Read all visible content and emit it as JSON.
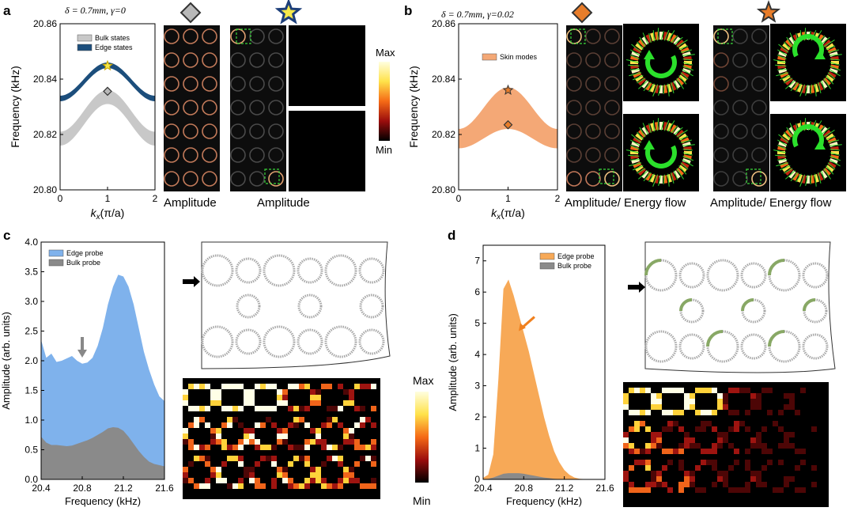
{
  "panel_labels": {
    "a": "a",
    "b": "b",
    "c": "c",
    "d": "d"
  },
  "panel_a": {
    "params": "δ = 0.7mm, γ=0",
    "caption_bulk": "Amplitude",
    "caption_edge": "Amplitude",
    "colorbar_max": "Max",
    "colorbar_min": "Min",
    "marker_diamond_color": "#b8b8b8",
    "marker_star_color": "#f5e84a",
    "marker_star_edge": "#1d3f7a"
  },
  "panel_b": {
    "params": "δ = 0.7mm, γ=0.02",
    "caption_bulk": "Amplitude/ Energy flow",
    "caption_edge": "Amplitude/ Energy flow",
    "marker_diamond_color": "#e87d2a",
    "marker_star_color": "#e87d2a"
  },
  "panel_c": {
    "colorbar_max": "Max",
    "colorbar_min": "Min"
  },
  "chart_data": [
    {
      "id": "a",
      "type": "area",
      "title": "δ = 0.7mm, γ=0",
      "xlabel": "k_x(π/a)",
      "ylabel": "Frequency (kHz)",
      "xlim": [
        0,
        2
      ],
      "ylim": [
        20.8,
        20.86
      ],
      "xticks": [
        "0",
        "1",
        "2"
      ],
      "yticks": [
        "20.80",
        "20.82",
        "20.84",
        "20.86"
      ],
      "legend": [
        "Bulk states",
        "Edge states"
      ],
      "series": [
        {
          "name": "Bulk states",
          "color": "#c8c8c8",
          "x": [
            0,
            0.5,
            1,
            1.5,
            2
          ],
          "lower": [
            20.816,
            20.824,
            20.831,
            20.824,
            20.816
          ],
          "upper": [
            20.821,
            20.829,
            20.836,
            20.829,
            20.821
          ]
        },
        {
          "name": "Edge states",
          "color": "#1c4e7c",
          "x": [
            0,
            0.5,
            1,
            1.5,
            2
          ],
          "lower": [
            20.832,
            20.838,
            20.844,
            20.838,
            20.832
          ],
          "upper": [
            20.834,
            20.84,
            20.846,
            20.84,
            20.834
          ]
        }
      ],
      "markers": [
        {
          "shape": "star",
          "x": 1,
          "y": 20.8448
        },
        {
          "shape": "diamond",
          "x": 1,
          "y": 20.8356
        }
      ]
    },
    {
      "id": "b",
      "type": "area",
      "title": "δ = 0.7mm, γ=0.02",
      "xlabel": "k_x(π/a)",
      "ylabel": "Frequency (kHz)",
      "xlim": [
        0,
        2
      ],
      "ylim": [
        20.8,
        20.86
      ],
      "xticks": [
        "0",
        "1",
        "2"
      ],
      "yticks": [
        "20.80",
        "20.82",
        "20.84",
        "20.86"
      ],
      "legend": [
        "Skin modes"
      ],
      "series": [
        {
          "name": "Skin modes",
          "color": "#f4a876",
          "x": [
            0,
            0.5,
            1,
            1.5,
            2
          ],
          "lower": [
            20.815,
            20.819,
            20.822,
            20.819,
            20.815
          ],
          "upper": [
            20.822,
            20.83,
            20.837,
            20.83,
            20.822
          ]
        }
      ],
      "markers": [
        {
          "shape": "star",
          "x": 1,
          "y": 20.836
        },
        {
          "shape": "diamond",
          "x": 1,
          "y": 20.8235
        }
      ]
    },
    {
      "id": "c",
      "type": "area",
      "xlabel": "Frequency (kHz)",
      "ylabel": "Amplitude (arb. units)",
      "xlim": [
        20.4,
        21.6
      ],
      "ylim": [
        0,
        4.0
      ],
      "xticks": [
        "20.4",
        "20.8",
        "21.2",
        "21.6"
      ],
      "yticks": [
        "0.0",
        "0.5",
        "1.0",
        "1.5",
        "2.0",
        "2.5",
        "3.0",
        "3.5",
        "4.0"
      ],
      "legend": [
        "Edge probe",
        "Bulk probe"
      ],
      "x": [
        20.4,
        20.45,
        20.5,
        20.55,
        20.6,
        20.65,
        20.7,
        20.75,
        20.8,
        20.85,
        20.9,
        20.95,
        21.0,
        21.05,
        21.1,
        21.15,
        21.2,
        21.25,
        21.3,
        21.35,
        21.4,
        21.45,
        21.5,
        21.55,
        21.6
      ],
      "series": [
        {
          "name": "Edge probe",
          "color": "#7fb2ec",
          "values": [
            2.35,
            2.05,
            2.12,
            1.98,
            2.0,
            2.04,
            2.08,
            2.0,
            1.95,
            1.97,
            2.05,
            2.25,
            2.55,
            2.95,
            3.25,
            3.45,
            3.42,
            3.25,
            2.95,
            2.55,
            2.15,
            1.85,
            1.6,
            1.4,
            1.32
          ]
        },
        {
          "name": "Bulk probe",
          "color": "#8a8a8a",
          "values": [
            0.72,
            0.62,
            0.58,
            0.58,
            0.57,
            0.56,
            0.57,
            0.6,
            0.63,
            0.66,
            0.7,
            0.75,
            0.8,
            0.86,
            0.88,
            0.87,
            0.82,
            0.72,
            0.6,
            0.48,
            0.38,
            0.3,
            0.26,
            0.24,
            0.22
          ]
        }
      ],
      "annotation": "gray arrow near 20.8 kHz"
    },
    {
      "id": "d",
      "type": "area",
      "xlabel": "Frequency (kHz)",
      "ylabel": "Amplitude (arb. units)",
      "xlim": [
        20.4,
        21.6
      ],
      "ylim": [
        0,
        7.5
      ],
      "xticks": [
        "20.4",
        "20.8",
        "21.2",
        "21.6"
      ],
      "yticks": [
        "0",
        "1",
        "2",
        "3",
        "4",
        "5",
        "6",
        "7"
      ],
      "legend": [
        "Edge probe",
        "Bulk probe"
      ],
      "x": [
        20.4,
        20.45,
        20.5,
        20.55,
        20.6,
        20.65,
        20.7,
        20.75,
        20.8,
        20.85,
        20.9,
        20.95,
        21.0,
        21.05,
        21.1,
        21.15,
        21.2,
        21.25,
        21.3,
        21.35,
        21.4,
        21.45,
        21.5,
        21.55,
        21.6
      ],
      "series": [
        {
          "name": "Edge probe",
          "color": "#f7a957",
          "values": [
            0.05,
            0.15,
            0.8,
            3.2,
            6.1,
            6.4,
            5.9,
            5.3,
            4.7,
            4.1,
            3.4,
            2.7,
            2.0,
            1.4,
            0.9,
            0.55,
            0.3,
            0.15,
            0.06,
            0.02,
            0.01,
            0,
            0,
            0,
            0
          ]
        },
        {
          "name": "Bulk probe",
          "color": "#8a8a8a",
          "values": [
            0.0,
            0.02,
            0.06,
            0.12,
            0.18,
            0.2,
            0.2,
            0.2,
            0.18,
            0.15,
            0.12,
            0.09,
            0.06,
            0.04,
            0.02,
            0.01,
            0,
            0,
            0,
            0,
            0,
            0,
            0,
            0,
            0
          ]
        }
      ],
      "annotation": "orange arrow pointing at 20.75 kHz shoulder"
    }
  ]
}
